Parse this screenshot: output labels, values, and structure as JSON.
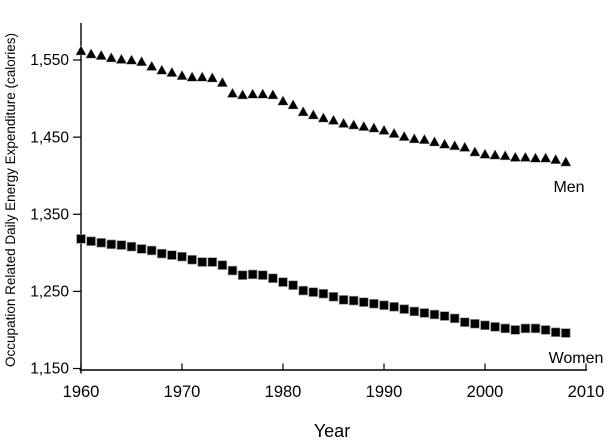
{
  "chart_data": {
    "type": "scatter",
    "title": "",
    "xlabel": "Year",
    "ylabel": "Occupation Related Daily Energy Expenditure (calories)",
    "xlim": [
      1960,
      2010
    ],
    "ylim": [
      1150,
      1600
    ],
    "grid": false,
    "legend_position": "series-end-labels",
    "x_ticks": [
      1960,
      1970,
      1980,
      1990,
      2000,
      2010
    ],
    "x_tick_labels": [
      "1960",
      "1970",
      "1980",
      "1990",
      "2000",
      "2010"
    ],
    "y_ticks": [
      1150,
      1250,
      1350,
      1450,
      1550
    ],
    "y_tick_labels": [
      "1,150",
      "1,250",
      "1,350",
      "1,450",
      "1,550"
    ],
    "marker_color": "#000000",
    "axis_color": "#000000",
    "years": [
      1960,
      1961,
      1962,
      1963,
      1964,
      1965,
      1966,
      1967,
      1968,
      1969,
      1970,
      1971,
      1972,
      1973,
      1974,
      1975,
      1976,
      1977,
      1978,
      1979,
      1980,
      1981,
      1982,
      1983,
      1984,
      1985,
      1986,
      1987,
      1988,
      1989,
      1990,
      1991,
      1992,
      1993,
      1994,
      1995,
      1996,
      1997,
      1998,
      1999,
      2000,
      2001,
      2002,
      2003,
      2004,
      2005,
      2006,
      2007,
      2008
    ],
    "series": [
      {
        "name": "Men",
        "marker": "triangle",
        "color": "#000000",
        "values": [
          1562,
          1558,
          1556,
          1553,
          1551,
          1550,
          1548,
          1542,
          1537,
          1534,
          1530,
          1528,
          1528,
          1527,
          1521,
          1507,
          1505,
          1506,
          1506,
          1505,
          1497,
          1492,
          1483,
          1479,
          1475,
          1472,
          1468,
          1466,
          1464,
          1462,
          1459,
          1455,
          1451,
          1448,
          1447,
          1444,
          1441,
          1439,
          1437,
          1431,
          1428,
          1427,
          1426,
          1424,
          1424,
          1423,
          1423,
          1421,
          1418
        ]
      },
      {
        "name": "Women",
        "marker": "square",
        "color": "#000000",
        "values": [
          1318,
          1315,
          1313,
          1311,
          1310,
          1308,
          1305,
          1303,
          1299,
          1297,
          1295,
          1291,
          1288,
          1288,
          1284,
          1277,
          1271,
          1272,
          1271,
          1267,
          1262,
          1258,
          1251,
          1249,
          1247,
          1243,
          1239,
          1238,
          1236,
          1234,
          1232,
          1230,
          1227,
          1224,
          1222,
          1220,
          1218,
          1215,
          1210,
          1208,
          1206,
          1204,
          1202,
          1200,
          1202,
          1202,
          1200,
          1197,
          1196
        ]
      }
    ]
  }
}
